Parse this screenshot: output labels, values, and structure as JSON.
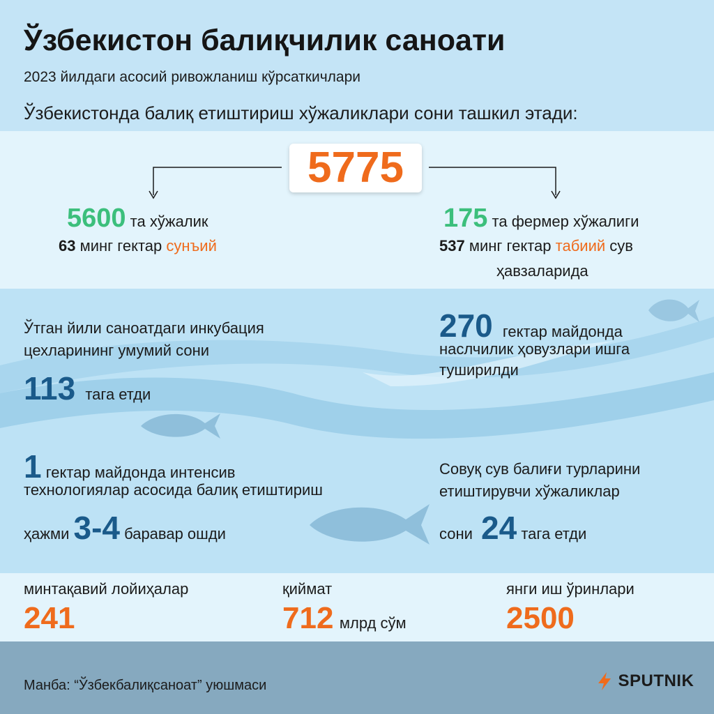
{
  "header": {
    "title": "Ўзбекистон балиқчилик саноати",
    "subtitle": "2023 йилдаги асосий ривожланиш кўрсаткичлари",
    "intro": "Ўзбекистонда балиқ етиштириш хўжаликлари сони ташкил этади:"
  },
  "total": {
    "value": "5775"
  },
  "left_branch": {
    "value": "5600",
    "unit": "та хўжалик",
    "area_value": "63",
    "area_text": "минг гектар",
    "area_type": "сунъий"
  },
  "right_branch": {
    "value": "175",
    "unit": "та фермер хўжалиги",
    "area_value": "537",
    "area_text": "минг гектар",
    "area_type": "табиий",
    "area_tail": "сув",
    "area_tail2": "ҳавзаларида"
  },
  "incubation": {
    "line1": "Ўтган йили саноатдаги инкубация",
    "line2": "цехларининг умумий сони",
    "value": "113",
    "suffix": "тага етди"
  },
  "ponds": {
    "value": "270",
    "line1": "гектар майдонда",
    "line2": "наслчилик ҳовузлари ишга",
    "line3": "туширилди"
  },
  "intensive": {
    "value": "1",
    "line1": "гектар майдонда интенсив",
    "line2": "технологиялар асосида балиқ етиштириш",
    "prefix": "ҳажми",
    "range": "3-4",
    "suffix": "баравар ошди"
  },
  "coldwater": {
    "line1": "Совуқ сув балиғи турларини",
    "line2": "етиштирувчи хўжаликлар",
    "prefix": "сони",
    "value": "24",
    "suffix": "тага етди"
  },
  "stats": [
    {
      "label": "минтақавий лойиҳалар",
      "value": "241",
      "unit": ""
    },
    {
      "label": "қиймат",
      "value": "712",
      "unit": "млрд сўм"
    },
    {
      "label": "янги иш ўринлари",
      "value": "2500",
      "unit": ""
    }
  ],
  "footer": {
    "source": "Манба: “Ўзбекбалиқсаноат” уюшмаси",
    "logo_text": "SPUTNIK"
  },
  "colors": {
    "accent_orange": "#ef6b1c",
    "accent_green": "#3cbf7c",
    "accent_blue": "#1a5a8a",
    "footer_band": "#86a9bf"
  }
}
